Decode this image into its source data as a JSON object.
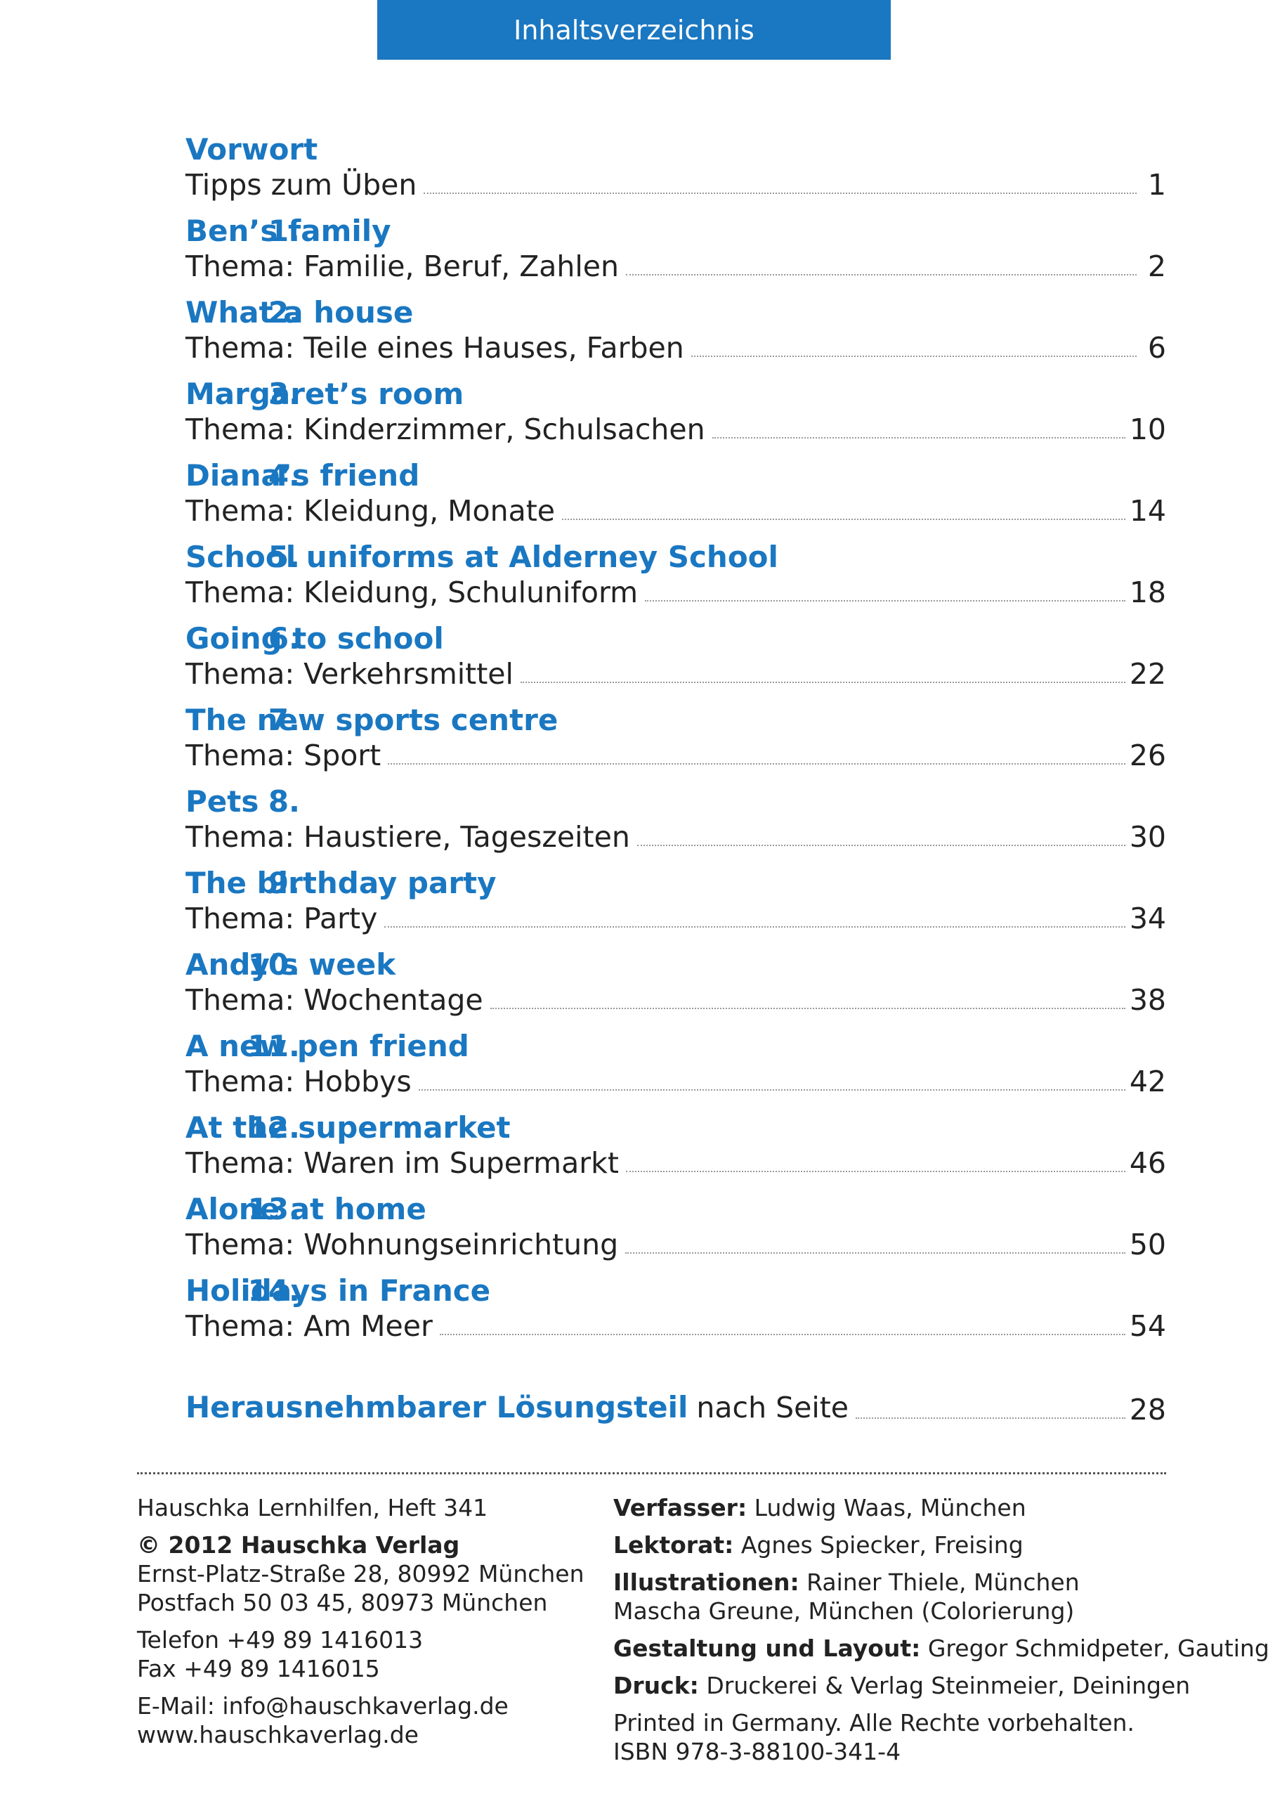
{
  "header": {
    "title": "Inhaltsverzeichnis"
  },
  "toc": {
    "entries": [
      {
        "num": "",
        "title": "Vorwort",
        "subtitle": "Tipps zum Üben",
        "page": "1"
      },
      {
        "num": "1.",
        "title": "Ben’s family",
        "subtitle": "Thema: Familie, Beruf, Zahlen",
        "page": "2"
      },
      {
        "num": "2.",
        "title": "What a house",
        "subtitle": "Thema: Teile eines Hauses, Farben",
        "page": "6"
      },
      {
        "num": "3.",
        "title": "Margaret’s room",
        "subtitle": "Thema: Kinderzimmer, Schulsachen",
        "page": "10"
      },
      {
        "num": "4.",
        "title": "Diana’s friend",
        "subtitle": "Thema: Kleidung, Monate",
        "page": "14"
      },
      {
        "num": "5.",
        "title": "School uniforms at Alderney School",
        "subtitle": "Thema: Kleidung, Schuluniform",
        "page": "18"
      },
      {
        "num": "6.",
        "title": "Going to school",
        "subtitle": "Thema: Verkehrsmittel",
        "page": "22"
      },
      {
        "num": "7.",
        "title": "The new sports centre",
        "subtitle": "Thema: Sport",
        "page": "26"
      },
      {
        "num": "8.",
        "title": "Pets",
        "subtitle": "Thema: Haustiere, Tageszeiten",
        "page": "30"
      },
      {
        "num": "9.",
        "title": "The birthday party",
        "subtitle": "Thema: Party",
        "page": "34"
      },
      {
        "num": "10.",
        "title": "Andy’s week",
        "subtitle": "Thema: Wochentage",
        "page": "38"
      },
      {
        "num": "11.",
        "title": "A new pen friend",
        "subtitle": "Thema: Hobbys",
        "page": "42"
      },
      {
        "num": "12.",
        "title": "At the supermarket",
        "subtitle": "Thema: Waren im Supermarkt",
        "page": "46"
      },
      {
        "num": "13.",
        "title": "Alone at home",
        "subtitle": "Thema: Wohnungseinrichtung",
        "page": "50"
      },
      {
        "num": "14.",
        "title": "Holidays in France",
        "subtitle": "Thema: Am Meer",
        "page": "54"
      }
    ],
    "solution": {
      "strong": "Herausnehmbarer Lösungsteil",
      "rest": "nach Seite",
      "page": "28"
    }
  },
  "footer": {
    "series": "Hauschka Lernhilfen, Heft 341",
    "copyright": "© 2012 Hauschka Verlag",
    "address1": "Ernst-Platz-Straße 28, 80992 München",
    "address2": "Postfach 50 03 45, 80973 München",
    "phone": "Telefon +49 89 1416013",
    "fax": "Fax +49 89 1416015",
    "email": "E-Mail: info@hauschkaverlag.de",
    "web": "www.hauschkaverlag.de",
    "author_label": "Verfasser:",
    "author": " Ludwig Waas, München",
    "editor_label": "Lektorat:",
    "editor": " Agnes Spiecker, Freising",
    "illus_label": "Illustrationen:",
    "illus1": " Rainer Thiele, München",
    "illus2": "Mascha Greune, München (Colorierung)",
    "design_label": "Gestaltung und Layout:",
    "design": " Gregor Schmidpeter, Gauting",
    "print_label": "Druck:",
    "print": " Druckerei & Verlag Steinmeier, Deiningen",
    "rights": "Printed in Germany. Alle Rechte vorbehalten.",
    "isbn": "ISBN 978-3-88100-341-4"
  },
  "colors": {
    "accent": "#1a77c1",
    "text": "#222222"
  }
}
